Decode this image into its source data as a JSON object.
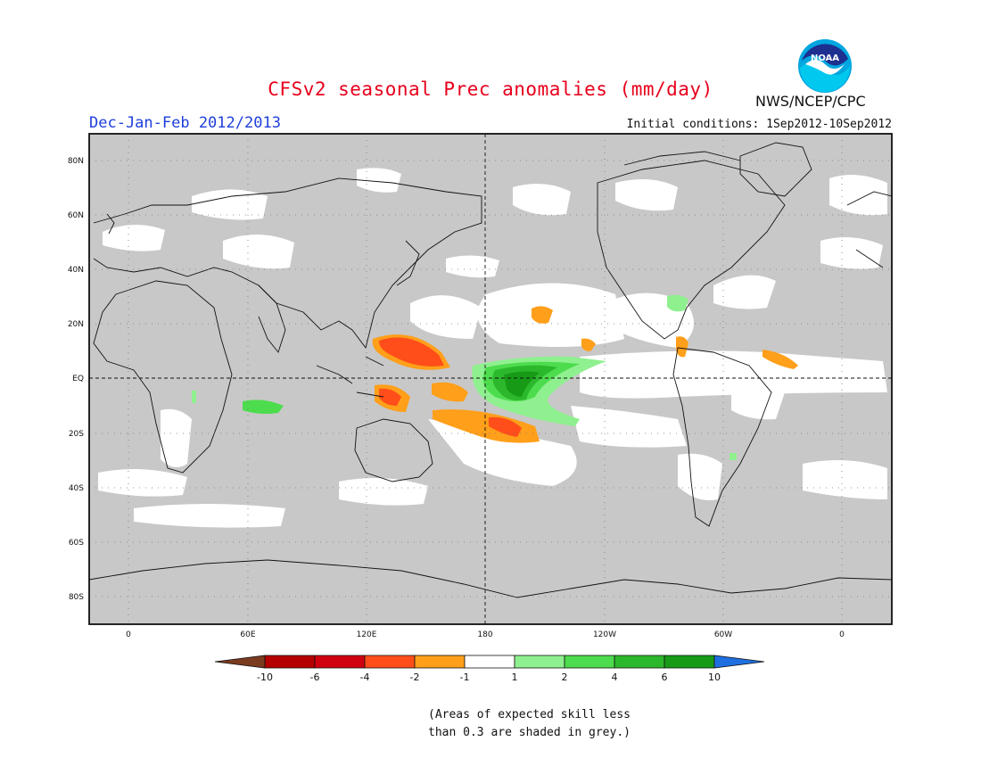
{
  "title": "CFSv2 seasonal Prec anomalies (mm/day)",
  "period": "Dec-Jan-Feb 2012/2013",
  "initial_conditions": "Initial conditions: 1Sep2012-10Sep2012",
  "agency": "NWS/NCEP/CPC",
  "logo_text": "NOAA",
  "note_line1": "(Areas of expected skill less",
  "note_line2": "than 0.3 are shaded in grey.)",
  "lat_labels": [
    "80N",
    "60N",
    "40N",
    "20N",
    "EQ",
    "20S",
    "40S",
    "60S",
    "80S"
  ],
  "lon_labels": [
    "0",
    "60E",
    "120E",
    "180",
    "120W",
    "60W",
    "0"
  ],
  "colorbar": {
    "labels": [
      "-10",
      "-6",
      "-4",
      "-2",
      "-1",
      "1",
      "2",
      "4",
      "6",
      "10"
    ],
    "colors": [
      "#7b3b1e",
      "#b40000",
      "#d00010",
      "#ff4e1a",
      "#ff9f1a",
      "#ffffff",
      "#8ff08f",
      "#4ddc4d",
      "#2cb82c",
      "#179b17",
      "#1f6fe0"
    ]
  },
  "colors": {
    "grey_low_skill": "#c8c8c8",
    "title": "#e8001c",
    "period": "#1f3fdc"
  }
}
